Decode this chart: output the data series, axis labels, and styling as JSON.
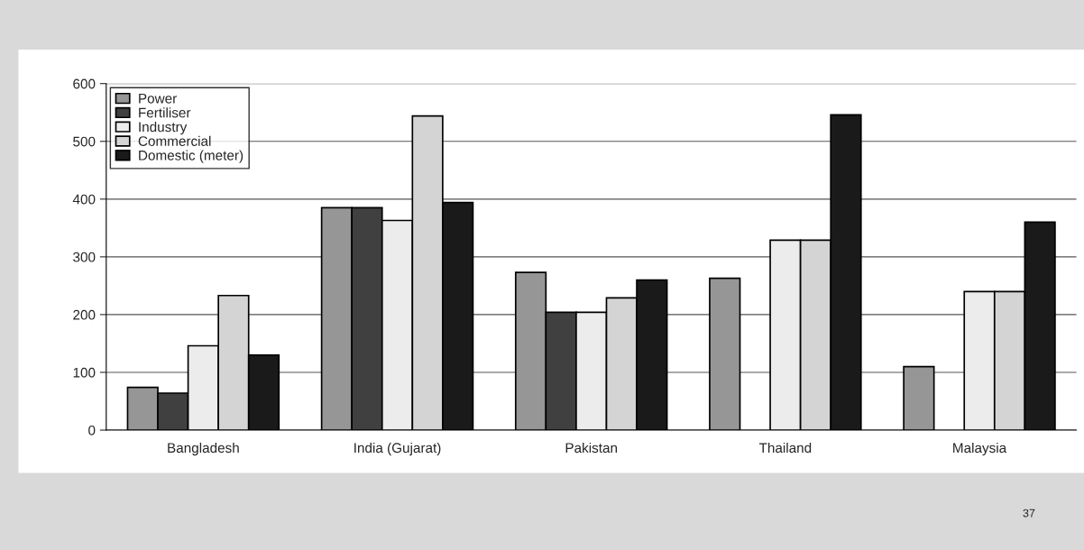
{
  "chart_data": {
    "type": "bar",
    "categories": [
      "Bangladesh",
      "India (Gujarat)",
      "Pakistan",
      "Thailand",
      "Malaysia"
    ],
    "series": [
      {
        "name": "Power",
        "color": "#969696",
        "values": [
          74,
          385,
          273,
          263,
          110
        ]
      },
      {
        "name": "Fertiliser",
        "color": "#404040",
        "values": [
          64,
          385,
          204,
          null,
          null
        ]
      },
      {
        "name": "Industry",
        "color": "#ececec",
        "values": [
          146,
          363,
          204,
          329,
          240
        ]
      },
      {
        "name": "Commercial",
        "color": "#d4d4d4",
        "values": [
          233,
          544,
          229,
          329,
          240
        ]
      },
      {
        "name": "Domestic (meter)",
        "color": "#1a1a1a",
        "values": [
          130,
          394,
          260,
          546,
          360
        ]
      }
    ],
    "ylim": [
      0,
      600
    ],
    "yticks": [
      0,
      100,
      200,
      300,
      400,
      500,
      600
    ],
    "grid": "y",
    "legend": "top left",
    "annotations": [
      "37"
    ]
  }
}
